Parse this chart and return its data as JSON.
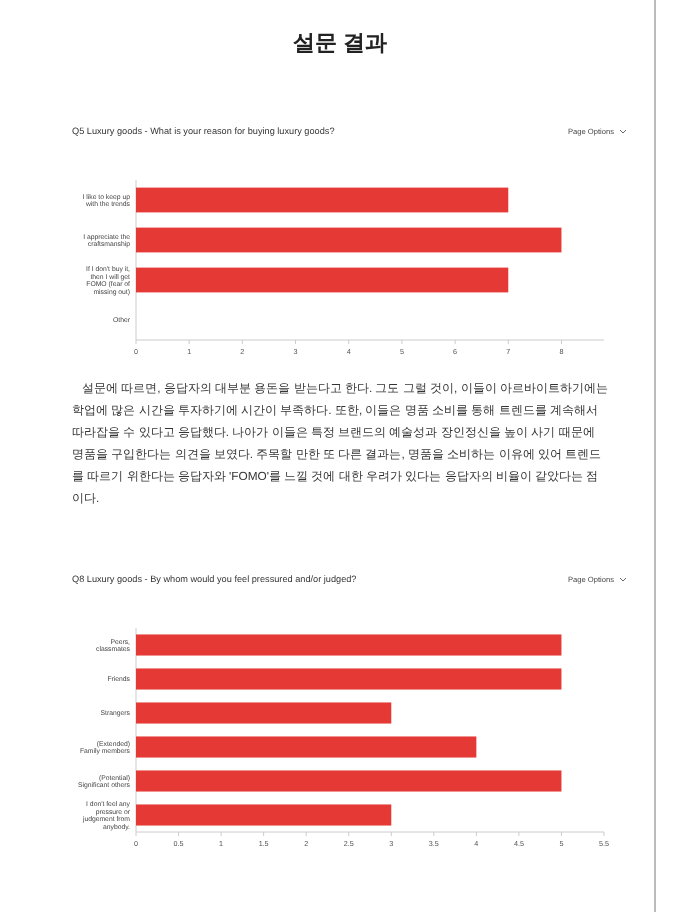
{
  "chart_data": [
    {
      "type": "other",
      "title": "설문 결과"
    },
    {
      "type": "bar",
      "orientation": "horizontal",
      "title": "Q5 Luxury goods - What is your reason for buying luxury goods?",
      "annotations": [
        "Page Options"
      ],
      "categories": [
        "I like to keep up with the trends",
        "I appreciate the craftsmanship",
        "If I don't buy it, then I will get FOMO (fear of missing out)",
        "Other"
      ],
      "values": [
        7,
        8,
        7,
        0
      ],
      "color": "#e53935",
      "xlim": [
        0,
        8.8
      ],
      "xticks": [
        0,
        1,
        2,
        3,
        4,
        5,
        6,
        7,
        8
      ],
      "grid": false
    },
    {
      "type": "other",
      "annotations": [
        "설문에 따르면, 응답자의 대부분 용돈을 받는다고 한다. 그도 그럴 것이, 이들이 아르바이트하기에는 학업에 많은 시간을 투자하기에 시간이 부족하다. 또한, 이들은 명품 소비를 통해 트렌드를 계속해서 따라잡을 수 있다고 응답했다. 나아가 이들은 특정 브랜드의 예술성과 장인정신을 높이 사기 때문에 명품을 구입한다는 의견을 보였다. 주목할 만한 또 다른 결과는, 명품을 소비하는 이유에 있어 트렌드를 따르기 위한다는 응답자와 'FOMO'를 느낄 것에 대한 우려가 있다는 응답자의 비율이 같았다는 점이다."
      ]
    },
    {
      "type": "bar",
      "orientation": "horizontal",
      "title": "Q8 Luxury goods - By whom would you feel pressured and/or judged?",
      "annotations": [
        "Page Options"
      ],
      "categories": [
        "Peers, classmates",
        "Friends",
        "Strangers",
        "(Extended) Family members",
        "(Potential) Significant others",
        "I don't feel any pressure or judgement from anybody."
      ],
      "values": [
        5,
        5,
        3,
        4,
        5,
        3
      ],
      "color": "#e53935",
      "xlim": [
        0,
        5.5
      ],
      "xticks": [
        0,
        0.5,
        1,
        1.5,
        2,
        2.5,
        3,
        3.5,
        4,
        4.5,
        5,
        5.5
      ],
      "grid": false
    }
  ]
}
